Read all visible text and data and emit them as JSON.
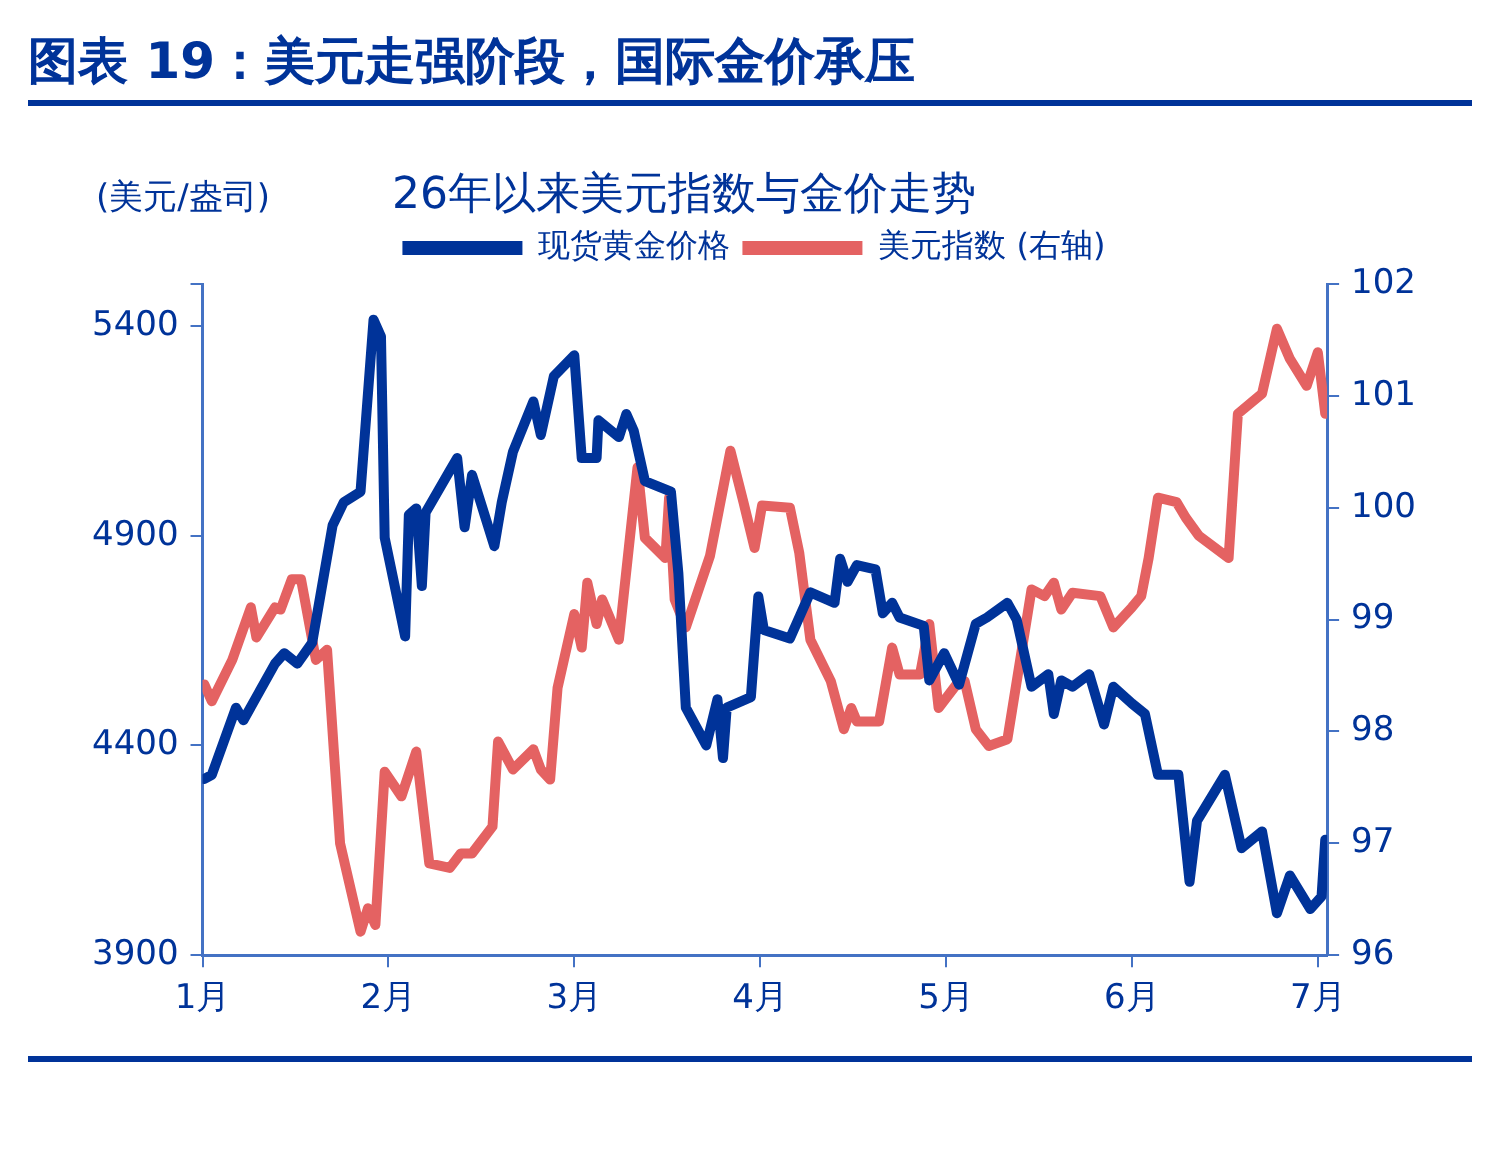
{
  "chart_data": {
    "type": "line",
    "title": "图表 19：美元走强阶段，国际金价承压",
    "subtitle": "26年以来美元指数与金价走势",
    "ylabel": "(美元/盎司)",
    "xlim": [
      1,
      7.05
    ],
    "xticks": [
      {
        "value": 1,
        "label": "1月"
      },
      {
        "value": 2,
        "label": "2月"
      },
      {
        "value": 3,
        "label": "3月"
      },
      {
        "value": 4,
        "label": "4月"
      },
      {
        "value": 5,
        "label": "5月"
      },
      {
        "value": 6,
        "label": "6月"
      },
      {
        "value": 7,
        "label": "7月"
      }
    ],
    "ylim": [
      3900,
      5500
    ],
    "yticks": [
      {
        "value": 3900,
        "label": "3900"
      },
      {
        "value": 4400,
        "label": "4400"
      },
      {
        "value": 4900,
        "label": "4900"
      },
      {
        "value": 5400,
        "label": "5400"
      },
      {
        "value": 5500,
        "label": null
      }
    ],
    "y2lim": [
      96,
      102
    ],
    "y2ticks": [
      96,
      97,
      98,
      99,
      100,
      101,
      102
    ],
    "grid": false,
    "legend": "top",
    "marker": "none",
    "line_style": "solid",
    "series": [
      {
        "name": "现货黄金价格",
        "color": "#003399",
        "x": [
          1.01,
          1.05,
          1.18,
          1.22,
          1.39,
          1.44,
          1.51,
          1.59,
          1.7,
          1.76,
          1.85,
          1.92,
          1.96,
          1.98,
          2.09,
          2.11,
          2.15,
          2.18,
          2.2,
          2.33,
          2.37,
          2.41,
          2.45,
          2.57,
          2.61,
          2.67,
          2.78,
          2.82,
          2.89,
          3.0,
          3.04,
          3.12,
          3.13,
          3.24,
          3.28,
          3.32,
          3.38,
          3.52,
          3.56,
          3.6,
          3.71,
          3.77,
          3.8,
          3.82,
          3.95,
          3.99,
          4.02,
          4.16,
          4.21,
          4.27,
          4.4,
          4.43,
          4.47,
          4.52,
          4.62,
          4.66,
          4.71,
          4.75,
          4.88,
          4.91,
          4.99,
          5.07,
          5.16,
          5.22,
          5.33,
          5.38,
          5.46,
          5.55,
          5.58,
          5.62,
          5.68,
          5.77,
          5.85,
          5.9,
          6.0,
          6.07,
          6.14,
          6.25,
          6.31,
          6.35,
          6.5,
          6.59,
          6.7,
          6.78,
          6.85,
          6.96,
          7.02,
          7.04
        ],
        "values": [
          4320,
          4330,
          4490,
          4460,
          4595,
          4620,
          4595,
          4645,
          4925,
          4980,
          5005,
          5415,
          5375,
          4895,
          4660,
          4950,
          4965,
          4780,
          4955,
          5055,
          5085,
          4920,
          5045,
          4875,
          4980,
          5100,
          5220,
          5140,
          5280,
          5330,
          5085,
          5085,
          5175,
          5135,
          5190,
          5150,
          5030,
          5005,
          4810,
          4490,
          4400,
          4510,
          4370,
          4490,
          4515,
          4755,
          4675,
          4655,
          4705,
          4765,
          4740,
          4845,
          4790,
          4830,
          4820,
          4715,
          4740,
          4705,
          4685,
          4555,
          4620,
          4545,
          4690,
          4705,
          4740,
          4700,
          4540,
          4570,
          4475,
          4555,
          4540,
          4570,
          4450,
          4540,
          4500,
          4475,
          4330,
          4330,
          4075,
          4220,
          4330,
          4155,
          4195,
          4000,
          4090,
          4010,
          4040,
          4175
        ]
      },
      {
        "name": "美元指数 (右轴)",
        "color": "#e46262",
        "axis": "y2",
        "x": [
          1.01,
          1.05,
          1.16,
          1.26,
          1.29,
          1.39,
          1.42,
          1.48,
          1.53,
          1.61,
          1.67,
          1.74,
          1.85,
          1.89,
          1.93,
          1.98,
          2.07,
          2.15,
          2.22,
          2.33,
          2.39,
          2.45,
          2.56,
          2.59,
          2.67,
          2.78,
          2.82,
          2.87,
          2.91,
          3.0,
          3.04,
          3.07,
          3.12,
          3.15,
          3.24,
          3.34,
          3.38,
          3.49,
          3.51,
          3.54,
          3.6,
          3.73,
          3.84,
          3.91,
          3.97,
          4.01,
          4.16,
          4.21,
          4.27,
          4.38,
          4.45,
          4.49,
          4.52,
          4.64,
          4.71,
          4.75,
          4.86,
          4.91,
          4.96,
          5.07,
          5.1,
          5.16,
          5.23,
          5.33,
          5.46,
          5.53,
          5.58,
          5.62,
          5.68,
          5.83,
          5.9,
          6.0,
          6.05,
          6.09,
          6.14,
          6.24,
          6.29,
          6.36,
          6.52,
          6.57,
          6.7,
          6.78,
          6.85,
          6.94,
          7.0,
          7.04
        ],
        "values": [
          98.42,
          98.27,
          98.64,
          99.11,
          98.84,
          99.11,
          99.09,
          99.36,
          99.36,
          98.64,
          98.73,
          97.0,
          96.21,
          96.42,
          96.27,
          97.64,
          97.42,
          97.82,
          96.82,
          96.78,
          96.91,
          96.91,
          97.15,
          97.91,
          97.66,
          97.84,
          97.66,
          97.57,
          98.39,
          99.05,
          98.75,
          99.33,
          98.96,
          99.18,
          98.82,
          100.36,
          99.73,
          99.55,
          100.09,
          99.18,
          98.93,
          99.57,
          100.51,
          100.05,
          99.64,
          100.02,
          100.0,
          99.6,
          98.82,
          98.45,
          98.02,
          98.21,
          98.09,
          98.09,
          98.75,
          98.51,
          98.51,
          98.96,
          98.21,
          98.45,
          98.45,
          98.02,
          97.87,
          97.93,
          99.27,
          99.21,
          99.33,
          99.09,
          99.24,
          99.21,
          98.93,
          99.11,
          99.21,
          99.55,
          100.09,
          100.05,
          99.91,
          99.75,
          99.55,
          100.84,
          101.02,
          101.6,
          101.33,
          101.09,
          101.39,
          100.84
        ]
      }
    ]
  }
}
